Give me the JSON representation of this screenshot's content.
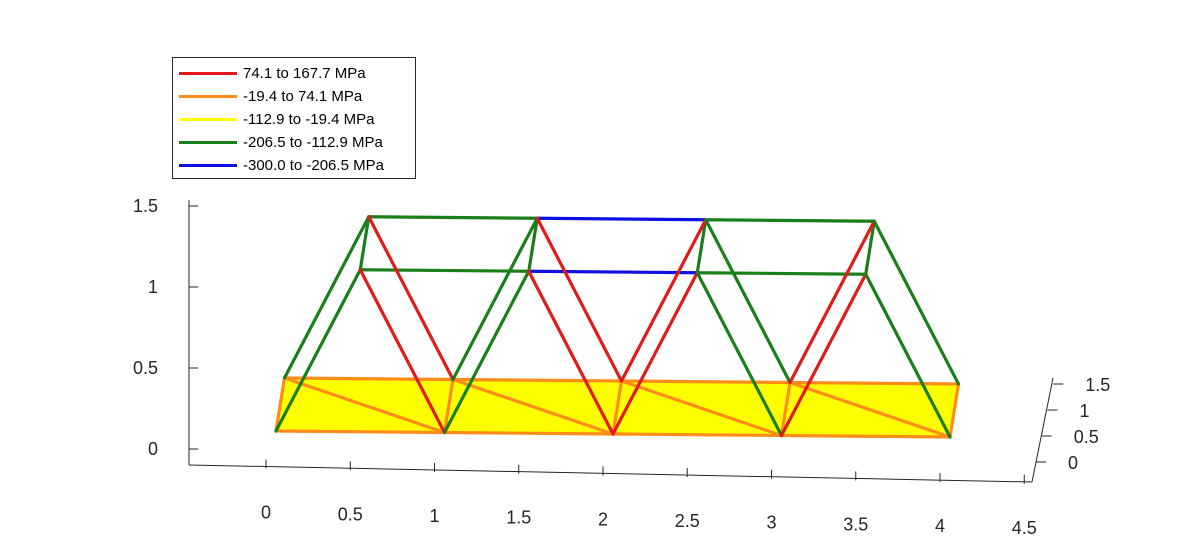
{
  "chart_data": {
    "type": "3d-truss",
    "title": "",
    "xlabel": "",
    "ylabel": "",
    "zlabel": "",
    "x_ticks": [
      "0",
      "0.5",
      "1",
      "1.5",
      "2",
      "2.5",
      "3",
      "3.5",
      "4",
      "4.5"
    ],
    "y_ticks": [
      "0",
      "0.5",
      "1",
      "1.5"
    ],
    "z_ticks": [
      "0",
      "0.5",
      "1",
      "1.5"
    ],
    "xlim": [
      0,
      4.5
    ],
    "ylim": [
      0,
      1.5
    ],
    "zlim": [
      0,
      1.5
    ],
    "grid": false,
    "legend_position": "top-left",
    "stress_classes": [
      {
        "key": "red",
        "label": "74.1 to 167.7 MPa",
        "color": "#e31a1c"
      },
      {
        "key": "orange",
        "label": "-19.4 to 74.1 MPa",
        "color": "#ff8c1a"
      },
      {
        "key": "yellow",
        "label": "-112.9 to -19.4 MPa",
        "color": "#ffff00"
      },
      {
        "key": "green",
        "label": "-206.5 to -112.9 MPa",
        "color": "#1a7f1a"
      },
      {
        "key": "blue",
        "label": "-300.0 to -206.5 MPa",
        "color": "#1010e0"
      }
    ],
    "deck_fill_color": "#ffff00",
    "nodes": {
      "A0": [
        0,
        0,
        0
      ],
      "A1": [
        1,
        0,
        0
      ],
      "A2": [
        2,
        0,
        0
      ],
      "A3": [
        3,
        0,
        0
      ],
      "A4": [
        4,
        0,
        0
      ],
      "B0": [
        0,
        1,
        0
      ],
      "B1": [
        1,
        1,
        0
      ],
      "B2": [
        2,
        1,
        0
      ],
      "B3": [
        3,
        1,
        0
      ],
      "B4": [
        4,
        1,
        0
      ],
      "TA0": [
        0.5,
        0,
        1
      ],
      "TA1": [
        1.5,
        0,
        1
      ],
      "TA2": [
        2.5,
        0,
        1
      ],
      "TA3": [
        3.5,
        0,
        1
      ],
      "TB0": [
        0.5,
        1,
        1
      ],
      "TB1": [
        1.5,
        1,
        1
      ],
      "TB2": [
        2.5,
        1,
        1
      ],
      "TB3": [
        3.5,
        1,
        1
      ]
    },
    "deck_panels": [
      [
        "A0",
        "A1",
        "B1",
        "B0"
      ],
      [
        "A1",
        "A2",
        "B2",
        "B1"
      ],
      [
        "A2",
        "A3",
        "B3",
        "B2"
      ],
      [
        "A3",
        "A4",
        "B4",
        "B3"
      ]
    ],
    "members": [
      {
        "from": "A0",
        "to": "A1",
        "cls": "orange"
      },
      {
        "from": "A1",
        "to": "A2",
        "cls": "orange"
      },
      {
        "from": "A2",
        "to": "A3",
        "cls": "orange"
      },
      {
        "from": "A3",
        "to": "A4",
        "cls": "orange"
      },
      {
        "from": "B0",
        "to": "B1",
        "cls": "orange"
      },
      {
        "from": "B1",
        "to": "B2",
        "cls": "orange"
      },
      {
        "from": "B2",
        "to": "B3",
        "cls": "orange"
      },
      {
        "from": "B3",
        "to": "B4",
        "cls": "orange"
      },
      {
        "from": "A0",
        "to": "B0",
        "cls": "orange"
      },
      {
        "from": "A1",
        "to": "B1",
        "cls": "orange"
      },
      {
        "from": "A2",
        "to": "B2",
        "cls": "orange"
      },
      {
        "from": "A3",
        "to": "B3",
        "cls": "orange"
      },
      {
        "from": "A4",
        "to": "B4",
        "cls": "orange"
      },
      {
        "from": "B0",
        "to": "A1",
        "cls": "orange"
      },
      {
        "from": "B1",
        "to": "A2",
        "cls": "orange"
      },
      {
        "from": "B2",
        "to": "A3",
        "cls": "orange"
      },
      {
        "from": "B3",
        "to": "A4",
        "cls": "orange"
      },
      {
        "from": "TB0",
        "to": "TB1",
        "cls": "green"
      },
      {
        "from": "TB1",
        "to": "TB2",
        "cls": "blue"
      },
      {
        "from": "TB2",
        "to": "TB3",
        "cls": "green"
      },
      {
        "from": "TA0",
        "to": "TA1",
        "cls": "green"
      },
      {
        "from": "TA1",
        "to": "TA2",
        "cls": "blue"
      },
      {
        "from": "TA2",
        "to": "TA3",
        "cls": "green"
      },
      {
        "from": "TA0",
        "to": "TB0",
        "cls": "green"
      },
      {
        "from": "TA1",
        "to": "TB1",
        "cls": "green"
      },
      {
        "from": "TA2",
        "to": "TB2",
        "cls": "green"
      },
      {
        "from": "TA3",
        "to": "TB3",
        "cls": "green"
      },
      {
        "from": "B0",
        "to": "TB0",
        "cls": "green"
      },
      {
        "from": "TB0",
        "to": "B1",
        "cls": "red"
      },
      {
        "from": "B1",
        "to": "TB1",
        "cls": "green"
      },
      {
        "from": "TB1",
        "to": "B2",
        "cls": "red"
      },
      {
        "from": "B2",
        "to": "TB2",
        "cls": "red"
      },
      {
        "from": "TB2",
        "to": "B3",
        "cls": "green"
      },
      {
        "from": "B3",
        "to": "TB3",
        "cls": "red"
      },
      {
        "from": "TB3",
        "to": "B4",
        "cls": "green"
      },
      {
        "from": "A0",
        "to": "TA0",
        "cls": "green"
      },
      {
        "from": "TA0",
        "to": "A1",
        "cls": "red"
      },
      {
        "from": "A1",
        "to": "TA1",
        "cls": "green"
      },
      {
        "from": "TA1",
        "to": "A2",
        "cls": "red"
      },
      {
        "from": "A2",
        "to": "TA2",
        "cls": "red"
      },
      {
        "from": "TA2",
        "to": "A3",
        "cls": "green"
      },
      {
        "from": "A3",
        "to": "TA3",
        "cls": "red"
      },
      {
        "from": "TA3",
        "to": "A4",
        "cls": "green"
      }
    ]
  }
}
